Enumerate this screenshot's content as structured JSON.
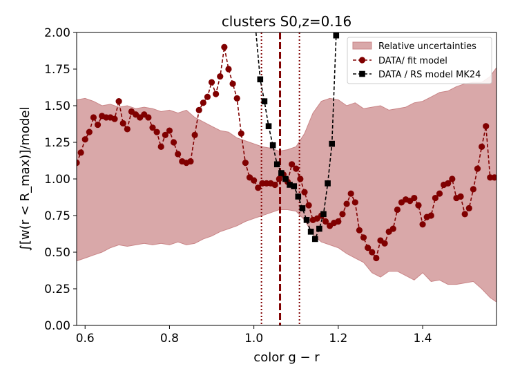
{
  "chart_data": {
    "type": "line",
    "title": "clusters S0,z=0.16",
    "xlabel": "color g − r",
    "ylabel": "∫[w(r < R_max)]/model",
    "xlim": [
      0.58,
      1.575
    ],
    "ylim": [
      0.0,
      2.0
    ],
    "xticks": [
      "0.6",
      "0.8",
      "1.0",
      "1.2",
      "1.4"
    ],
    "xtick_values": [
      0.6,
      0.8,
      1.0,
      1.2,
      1.4
    ],
    "yticks": [
      "0.00",
      "0.25",
      "0.50",
      "0.75",
      "1.00",
      "1.25",
      "1.50",
      "1.75",
      "2.00"
    ],
    "ytick_values": [
      0.0,
      0.25,
      0.5,
      0.75,
      1.0,
      1.25,
      1.5,
      1.75,
      2.0
    ],
    "grid": false,
    "legend_position": "top-right",
    "colors": {
      "band": "#d9a8a9",
      "band_edge": "#c98587",
      "fit": "#800000",
      "rs": "#000000"
    },
    "series": [
      {
        "name": "Relative uncertainties",
        "kind": "band",
        "x": [
          0.58,
          0.6,
          0.62,
          0.64,
          0.66,
          0.68,
          0.7,
          0.72,
          0.74,
          0.76,
          0.78,
          0.8,
          0.82,
          0.84,
          0.86,
          0.88,
          0.9,
          0.92,
          0.94,
          0.96,
          0.98,
          1.0,
          1.02,
          1.04,
          1.06,
          1.08,
          1.1,
          1.12,
          1.14,
          1.16,
          1.18,
          1.2,
          1.22,
          1.24,
          1.26,
          1.28,
          1.3,
          1.32,
          1.34,
          1.36,
          1.38,
          1.4,
          1.42,
          1.44,
          1.46,
          1.48,
          1.5,
          1.52,
          1.54,
          1.56,
          1.575
        ],
        "upper": [
          1.54,
          1.55,
          1.53,
          1.5,
          1.51,
          1.49,
          1.5,
          1.48,
          1.49,
          1.48,
          1.46,
          1.47,
          1.45,
          1.47,
          1.42,
          1.39,
          1.36,
          1.33,
          1.32,
          1.28,
          1.26,
          1.24,
          1.22,
          1.21,
          1.19,
          1.2,
          1.22,
          1.31,
          1.45,
          1.53,
          1.55,
          1.54,
          1.5,
          1.52,
          1.48,
          1.49,
          1.5,
          1.47,
          1.48,
          1.49,
          1.52,
          1.53,
          1.56,
          1.59,
          1.6,
          1.63,
          1.65,
          1.66,
          1.66,
          1.7,
          1.76
        ],
        "lower": [
          0.44,
          0.46,
          0.48,
          0.5,
          0.53,
          0.55,
          0.54,
          0.55,
          0.56,
          0.55,
          0.56,
          0.55,
          0.57,
          0.55,
          0.56,
          0.59,
          0.61,
          0.64,
          0.66,
          0.68,
          0.71,
          0.73,
          0.75,
          0.77,
          0.79,
          0.79,
          0.78,
          0.72,
          0.62,
          0.57,
          0.55,
          0.53,
          0.49,
          0.46,
          0.43,
          0.36,
          0.33,
          0.37,
          0.37,
          0.34,
          0.31,
          0.36,
          0.3,
          0.31,
          0.28,
          0.28,
          0.29,
          0.3,
          0.25,
          0.19,
          0.16
        ]
      },
      {
        "name": "DATA/ fit model",
        "kind": "line",
        "marker": "circle",
        "x": [
          0.58,
          0.59,
          0.6,
          0.61,
          0.62,
          0.63,
          0.64,
          0.65,
          0.66,
          0.67,
          0.68,
          0.69,
          0.7,
          0.71,
          0.72,
          0.73,
          0.74,
          0.75,
          0.76,
          0.77,
          0.78,
          0.79,
          0.8,
          0.81,
          0.82,
          0.83,
          0.84,
          0.85,
          0.86,
          0.87,
          0.88,
          0.89,
          0.9,
          0.91,
          0.92,
          0.93,
          0.94,
          0.95,
          0.96,
          0.97,
          0.98,
          0.99,
          1.0,
          1.01,
          1.02,
          1.03,
          1.04,
          1.05,
          1.06,
          1.07,
          1.08,
          1.09,
          1.1,
          1.11,
          1.12,
          1.13,
          1.14,
          1.15,
          1.16,
          1.17,
          1.18,
          1.19,
          1.2,
          1.21,
          1.22,
          1.23,
          1.24,
          1.25,
          1.26,
          1.27,
          1.28,
          1.29,
          1.3,
          1.31,
          1.32,
          1.33,
          1.34,
          1.35,
          1.36,
          1.37,
          1.38,
          1.39,
          1.4,
          1.41,
          1.42,
          1.43,
          1.44,
          1.45,
          1.46,
          1.47,
          1.48,
          1.49,
          1.5,
          1.51,
          1.52,
          1.53,
          1.54,
          1.55,
          1.56,
          1.57
        ],
        "values": [
          1.11,
          1.18,
          1.27,
          1.32,
          1.42,
          1.37,
          1.43,
          1.42,
          1.42,
          1.41,
          1.53,
          1.38,
          1.34,
          1.46,
          1.44,
          1.42,
          1.44,
          1.42,
          1.35,
          1.32,
          1.22,
          1.3,
          1.33,
          1.25,
          1.17,
          1.12,
          1.11,
          1.12,
          1.3,
          1.47,
          1.52,
          1.56,
          1.66,
          1.58,
          1.7,
          1.9,
          1.75,
          1.65,
          1.55,
          1.31,
          1.11,
          1.01,
          0.99,
          0.94,
          0.97,
          0.97,
          0.97,
          0.96,
          1.0,
          1.03,
          0.98,
          1.1,
          1.07,
          1.0,
          0.91,
          0.82,
          0.72,
          0.73,
          0.75,
          0.71,
          0.68,
          0.7,
          0.71,
          0.76,
          0.83,
          0.9,
          0.84,
          0.65,
          0.6,
          0.53,
          0.5,
          0.46,
          0.58,
          0.56,
          0.64,
          0.66,
          0.79,
          0.84,
          0.86,
          0.85,
          0.87,
          0.82,
          0.69,
          0.74,
          0.75,
          0.87,
          0.9,
          0.96,
          0.97,
          1.0,
          0.87,
          0.88,
          0.76,
          0.8,
          0.93,
          1.07,
          1.22,
          1.36,
          1.01,
          1.01
        ]
      },
      {
        "name": "DATA / RS model MK24",
        "kind": "line",
        "marker": "square",
        "x": [
          1.005,
          1.015,
          1.025,
          1.035,
          1.045,
          1.055,
          1.065,
          1.075,
          1.085,
          1.095,
          1.105,
          1.115,
          1.125,
          1.135,
          1.145,
          1.155,
          1.165,
          1.175,
          1.185,
          1.195,
          1.2
        ],
        "values": [
          2.0,
          1.68,
          1.53,
          1.36,
          1.23,
          1.1,
          1.04,
          1.0,
          0.96,
          0.95,
          0.88,
          0.8,
          0.72,
          0.64,
          0.59,
          0.66,
          0.76,
          0.97,
          1.24,
          1.98,
          2.0
        ],
        "marker_mask": [
          false,
          true,
          true,
          true,
          true,
          true,
          true,
          true,
          true,
          true,
          true,
          true,
          true,
          true,
          true,
          true,
          true,
          true,
          true,
          true,
          false
        ]
      }
    ],
    "vlines": [
      {
        "x": 1.062,
        "style": "dashed",
        "width": 3
      },
      {
        "x": 1.018,
        "style": "dotted",
        "width": 2
      },
      {
        "x": 1.108,
        "style": "dotted",
        "width": 2
      }
    ]
  }
}
